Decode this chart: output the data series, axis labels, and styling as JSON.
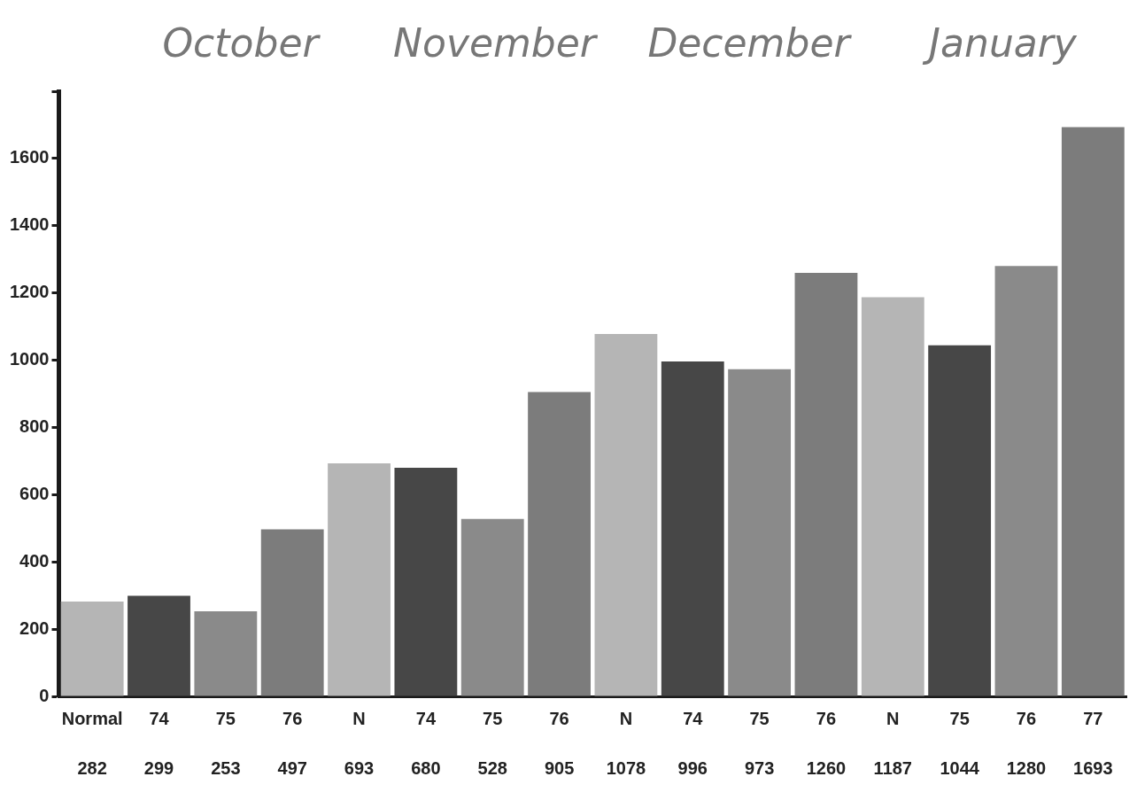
{
  "chart_data": {
    "type": "bar",
    "categories": [
      "Normal",
      "74",
      "75",
      "76",
      "N",
      "74",
      "75",
      "76",
      "N",
      "74",
      "75",
      "76",
      "N",
      "75",
      "76",
      "77"
    ],
    "values": [
      282,
      299,
      253,
      497,
      693,
      680,
      528,
      905,
      1078,
      996,
      973,
      1260,
      1187,
      1044,
      1280,
      1693
    ],
    "colors": [
      "#b5b5b5",
      "#474747",
      "#8a8a8a",
      "#7c7c7c",
      "#b5b5b5",
      "#474747",
      "#8a8a8a",
      "#7c7c7c",
      "#b5b5b5",
      "#474747",
      "#8a8a8a",
      "#7c7c7c",
      "#b5b5b5",
      "#474747",
      "#8a8a8a",
      "#7c7c7c"
    ],
    "ylim": [
      0,
      1800
    ],
    "yticks": [
      0,
      200,
      400,
      600,
      800,
      1000,
      1200,
      1400,
      1600,
      {
        "value": 1800,
        "label": null
      }
    ],
    "grid": false,
    "legend": false,
    "data_labels": true,
    "annotations": [
      "October",
      "November",
      "December",
      "January"
    ]
  }
}
